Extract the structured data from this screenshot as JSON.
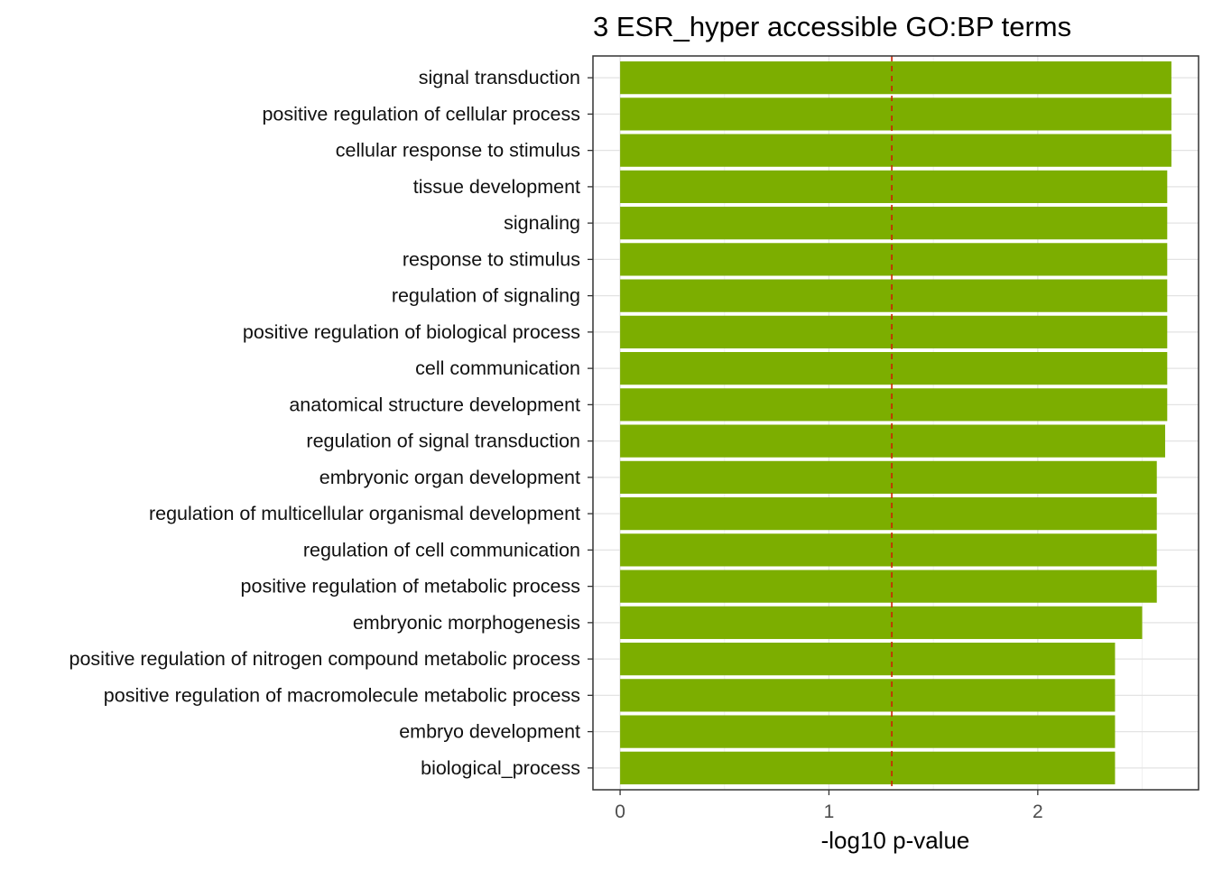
{
  "chart_data": {
    "type": "bar",
    "orientation": "horizontal",
    "title": "3 ESR_hyper accessible GO:BP terms",
    "xlabel": "-log10 p-value",
    "ylabel": "",
    "xlim": [
      -0.13,
      2.77
    ],
    "x_ticks": [
      0,
      1,
      2
    ],
    "grid": true,
    "bar_color": "#7CAE00",
    "threshold_line": {
      "value": 1.301,
      "color": "#CC2200",
      "style": "dashed"
    },
    "categories": [
      "signal transduction",
      "positive regulation of cellular process",
      "cellular response to stimulus",
      "tissue development",
      "signaling",
      "response to stimulus",
      "regulation of signaling",
      "positive regulation of biological process",
      "cell communication",
      "anatomical structure development",
      "regulation of signal transduction",
      "embryonic organ development",
      "regulation of multicellular organismal development",
      "regulation of cell communication",
      "positive regulation of metabolic process",
      "embryonic morphogenesis",
      "positive regulation of nitrogen compound metabolic process",
      "positive regulation of macromolecule metabolic process",
      "embryo development",
      "biological_process"
    ],
    "values": [
      2.64,
      2.64,
      2.64,
      2.62,
      2.62,
      2.62,
      2.62,
      2.62,
      2.62,
      2.62,
      2.61,
      2.57,
      2.57,
      2.57,
      2.57,
      2.5,
      2.37,
      2.37,
      2.37,
      2.37
    ]
  }
}
